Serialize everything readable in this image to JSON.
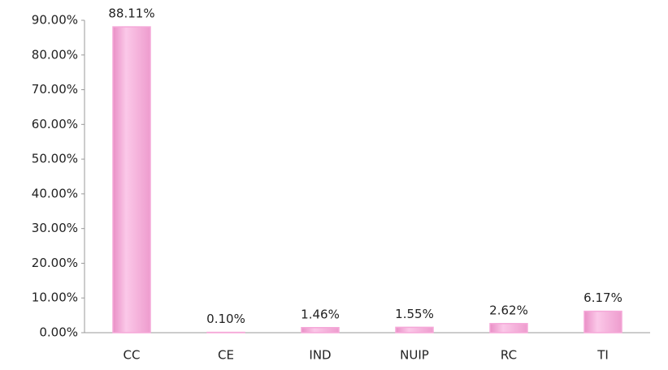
{
  "chart_data": {
    "type": "bar",
    "categories": [
      "CC",
      "CE",
      "IND",
      "NUIP",
      "RC",
      "TI"
    ],
    "values": [
      88.11,
      0.1,
      1.46,
      1.55,
      2.62,
      6.17
    ],
    "value_labels": [
      "88.11%",
      "0.10%",
      "1.46%",
      "1.55%",
      "2.62%",
      "6.17%"
    ],
    "color": "#f5a8d8",
    "ylim": [
      0,
      90
    ],
    "yticks": [
      {
        "value": 0,
        "label": "0.00%"
      },
      {
        "value": 10,
        "label": "10.00%"
      },
      {
        "value": 20,
        "label": "20.00%"
      },
      {
        "value": 30,
        "label": "30.00%"
      },
      {
        "value": 40,
        "label": "40.00%"
      },
      {
        "value": 50,
        "label": "50.00%"
      },
      {
        "value": 60,
        "label": "60.00%"
      },
      {
        "value": 70,
        "label": "70.00%"
      },
      {
        "value": 80,
        "label": "80.00%"
      },
      {
        "value": 90,
        "label": "90.00%"
      }
    ],
    "grid": false
  }
}
